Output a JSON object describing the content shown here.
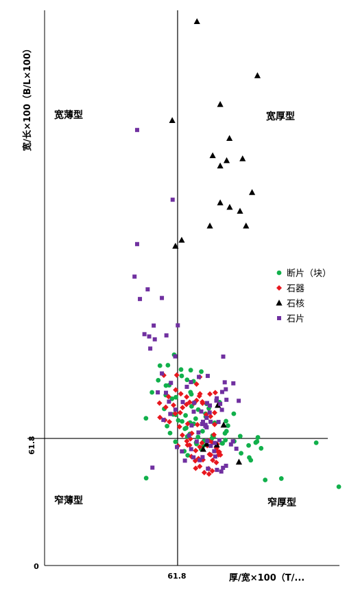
{
  "chart_data": {
    "type": "scatter",
    "title": "",
    "xlabel": "厚/宽×100（T/...",
    "ylabel": "宽/长×100（B/L×100）",
    "reference": {
      "x": 61.8,
      "y": 61.8,
      "x_label": "61.8",
      "y_label": "61.8",
      "origin_label": "0"
    },
    "xlim": [
      0,
      137
    ],
    "ylim": [
      0,
      270
    ],
    "grid": false,
    "legend_position": "right",
    "quadrant_labels": {
      "top_left": "宽薄型",
      "top_right": "宽厚型",
      "bottom_left": "窄薄型",
      "bottom_right": "窄厚型"
    },
    "colors": {
      "fragment": "#11b04b",
      "tool": "#e8171e",
      "core": "#000000",
      "flake": "#7030a0"
    },
    "series": [
      {
        "name": "断片（块）",
        "marker": "circle",
        "color": "#11b04b",
        "points": [
          [
            47.1,
            71.6
          ],
          [
            56.4,
            87.5
          ],
          [
            49.9,
            84.2
          ],
          [
            52.8,
            90.1
          ],
          [
            60.2,
            102.5
          ],
          [
            63.4,
            95.3
          ],
          [
            67.9,
            95.0
          ],
          [
            75.3,
            78.6
          ],
          [
            81.3,
            79.4
          ],
          [
            72.8,
            94.3
          ],
          [
            69.3,
            68.9
          ],
          [
            62.1,
            70.6
          ],
          [
            55.6,
            76.2
          ],
          [
            56.9,
            67.8
          ],
          [
            63.9,
            70.1
          ],
          [
            68.3,
            77.4
          ],
          [
            61.0,
            81.8
          ],
          [
            53.6,
            97.2
          ],
          [
            71.3,
            62.5
          ],
          [
            82.4,
            59.5
          ],
          [
            83.8,
            64.3
          ],
          [
            94.8,
            58.4
          ],
          [
            95.8,
            51.2
          ],
          [
            126.2,
            59.7
          ],
          [
            90.9,
            62.9
          ],
          [
            102.5,
            41.6
          ],
          [
            59.8,
            73.5
          ],
          [
            65.5,
            73.0
          ],
          [
            70.2,
            71.4
          ],
          [
            57.9,
            87.7
          ],
          [
            59.2,
            81.1
          ],
          [
            66.3,
            62.7
          ],
          [
            65.8,
            66.9
          ],
          [
            73.4,
            65.3
          ],
          [
            74.9,
            72.4
          ],
          [
            67.8,
            84.3
          ],
          [
            66.2,
            90.3
          ],
          [
            57.3,
            97.4
          ],
          [
            47.2,
            42.5
          ],
          [
            85.2,
            68.0
          ],
          [
            84.3,
            70.2
          ],
          [
            79.0,
            69.4
          ],
          [
            87.9,
            73.8
          ],
          [
            95.1,
            52.5
          ],
          [
            100.6,
            57.0
          ],
          [
            91.3,
            54.6
          ],
          [
            77.6,
            61.6
          ],
          [
            64.9,
            55.6
          ],
          [
            60.8,
            60.2
          ],
          [
            70.6,
            59.1
          ],
          [
            73.9,
            58.3
          ],
          [
            78.5,
            62.5
          ],
          [
            69.2,
            89.6
          ],
          [
            76.3,
            76.4
          ],
          [
            99.1,
            62.3
          ],
          [
            88.1,
            60.4
          ],
          [
            72.7,
            56.7
          ],
          [
            58.3,
            64.4
          ],
          [
            66.5,
            53.6
          ],
          [
            68.2,
            83.3
          ],
          [
            70.4,
            59.8
          ],
          [
            78.1,
            63.2
          ],
          [
            82.7,
            59.4
          ],
          [
            63.7,
            92.2
          ],
          [
            69.7,
            79.3
          ],
          [
            56.3,
            82.9
          ],
          [
            84.0,
            61.0
          ],
          [
            98.1,
            59.8
          ],
          [
            136.7,
            38.3
          ],
          [
            98.7,
            60.3
          ],
          [
            61.0,
            73.3
          ],
          [
            67.6,
            69.5
          ],
          [
            110.0,
            42.3
          ],
          [
            74.0,
            60.5
          ],
          [
            71.4,
            75.8
          ],
          [
            67.5,
            64.0
          ],
          [
            84.5,
            65.3
          ],
          [
            65.2,
            66.5
          ],
          [
            74.8,
            73.8
          ]
        ]
      },
      {
        "name": "石器",
        "marker": "diamond",
        "color": "#e8171e",
        "points": [
          [
            53.4,
            79.0
          ],
          [
            59.9,
            78.0
          ],
          [
            55.9,
            70.7
          ],
          [
            60.9,
            85.4
          ],
          [
            63.3,
            83.5
          ],
          [
            65.9,
            78.3
          ],
          [
            72.1,
            91.7
          ],
          [
            73.4,
            78.9
          ],
          [
            64.1,
            76.8
          ],
          [
            63.0,
            74.3
          ],
          [
            67.4,
            79.4
          ],
          [
            66.0,
            82.0
          ],
          [
            53.6,
            72.0
          ],
          [
            55.4,
            92.5
          ],
          [
            61.4,
            92.6
          ],
          [
            58.0,
            69.9
          ],
          [
            64.0,
            63.4
          ],
          [
            62.0,
            58.2
          ],
          [
            66.4,
            58.6
          ],
          [
            70.2,
            55.9
          ],
          [
            68.2,
            53.0
          ],
          [
            72.1,
            57.7
          ],
          [
            70.6,
            80.3
          ],
          [
            71.9,
            82.4
          ],
          [
            79.0,
            74.3
          ],
          [
            73.1,
            59.6
          ],
          [
            67.8,
            61.6
          ],
          [
            73.6,
            51.4
          ],
          [
            70.0,
            50.9
          ],
          [
            76.6,
            54.1
          ],
          [
            68.4,
            64.3
          ],
          [
            77.1,
            72.5
          ],
          [
            57.6,
            82.1
          ],
          [
            79.3,
            84.1
          ],
          [
            60.7,
            73.9
          ],
          [
            72.2,
            83.5
          ],
          [
            66.5,
            68.9
          ],
          [
            70.6,
            88.2
          ],
          [
            79.0,
            68.6
          ],
          [
            76.4,
            60.7
          ],
          [
            77.9,
            46.0
          ],
          [
            74.2,
            45.2
          ],
          [
            76.4,
            44.5
          ],
          [
            69.4,
            78.9
          ],
          [
            67.4,
            58.5
          ],
          [
            62.7,
            67.5
          ],
          [
            71.5,
            52.0
          ],
          [
            72.1,
            48.2
          ],
          [
            70.2,
            47.3
          ],
          [
            76.2,
            47.1
          ],
          [
            66.1,
            60.5
          ],
          [
            75.6,
            58.3
          ],
          [
            77.9,
            59.8
          ],
          [
            80.2,
            59.0
          ],
          [
            79.8,
            50.1
          ],
          [
            78.1,
            51.2
          ],
          [
            73.3,
            79.6
          ],
          [
            71.0,
            68.5
          ],
          [
            56.3,
            77.0
          ],
          [
            77.2,
            53.8
          ],
          [
            80.6,
            55.3
          ],
          [
            81.2,
            55.2
          ],
          [
            81.7,
            53.8
          ],
          [
            79.9,
            57.1
          ],
          [
            80.8,
            53.8
          ],
          [
            78.7,
            63.6
          ],
          [
            76.8,
            83.4
          ],
          [
            75.1,
            73.4
          ]
        ]
      },
      {
        "name": "石核",
        "marker": "triangle",
        "color": "#000000",
        "points": [
          [
            70.8,
            264.5
          ],
          [
            98.9,
            238.2
          ],
          [
            59.3,
            216.4
          ],
          [
            81.6,
            224.2
          ],
          [
            85.9,
            207.7
          ],
          [
            78.1,
            199.3
          ],
          [
            84.6,
            196.9
          ],
          [
            92.0,
            197.8
          ],
          [
            96.4,
            181.4
          ],
          [
            81.6,
            176.4
          ],
          [
            86.0,
            174.2
          ],
          [
            90.8,
            172.3
          ],
          [
            93.6,
            165.1
          ],
          [
            76.8,
            165.1
          ],
          [
            63.7,
            158.2
          ],
          [
            60.8,
            155.3
          ],
          [
            83.2,
            68.3
          ],
          [
            80.0,
            58.6
          ],
          [
            75.3,
            59.1
          ],
          [
            90.3,
            50.3
          ],
          [
            73.7,
            56.5
          ],
          [
            80.5,
            77.9
          ],
          [
            81.6,
            194.3
          ]
        ]
      },
      {
        "name": "石片",
        "marker": "square",
        "color": "#7030a0",
        "points": [
          [
            43.0,
            211.8
          ],
          [
            59.5,
            177.9
          ],
          [
            43.0,
            156.3
          ],
          [
            41.8,
            140.5
          ],
          [
            44.3,
            129.6
          ],
          [
            47.9,
            134.3
          ],
          [
            54.5,
            130.1
          ],
          [
            50.7,
            116.7
          ],
          [
            46.4,
            112.5
          ],
          [
            51.2,
            110.0
          ],
          [
            61.9,
            116.8
          ],
          [
            56.6,
            111.9
          ],
          [
            60.7,
            101.7
          ],
          [
            49.1,
            105.5
          ],
          [
            54.5,
            93.4
          ],
          [
            52.6,
            84.2
          ],
          [
            57.8,
            79.7
          ],
          [
            64.2,
            79.5
          ],
          [
            58.4,
            73.7
          ],
          [
            55.2,
            70.8
          ],
          [
            60.8,
            75.8
          ],
          [
            72.8,
            74.9
          ],
          [
            76.7,
            74.4
          ],
          [
            77.1,
            69.9
          ],
          [
            75.3,
            67.2
          ],
          [
            81.6,
            78.6
          ],
          [
            79.8,
            80.2
          ],
          [
            84.2,
            85.7
          ],
          [
            83.0,
            101.6
          ],
          [
            75.8,
            92.2
          ],
          [
            68.0,
            89.2
          ],
          [
            66.1,
            86.9
          ],
          [
            71.7,
            91.7
          ],
          [
            74.8,
            68.4
          ],
          [
            79.1,
            59.6
          ],
          [
            68.1,
            56.6
          ],
          [
            73.4,
            52.7
          ],
          [
            72.1,
            51.2
          ],
          [
            78.8,
            55.6
          ],
          [
            77.2,
            58.2
          ],
          [
            70.7,
            60.3
          ],
          [
            67.1,
            63.2
          ],
          [
            79.3,
            53.0
          ],
          [
            82.9,
            47.5
          ],
          [
            82.1,
            45.7
          ],
          [
            84.3,
            48.5
          ],
          [
            75.9,
            47.1
          ],
          [
            65.2,
            51.0
          ],
          [
            50.1,
            47.6
          ],
          [
            80.8,
            69.8
          ],
          [
            74.7,
            67.9
          ],
          [
            69.5,
            79.1
          ],
          [
            75.6,
            60.5
          ],
          [
            68.3,
            68.1
          ],
          [
            73.2,
            68.8
          ],
          [
            80.0,
            81.3
          ],
          [
            82.5,
            84.4
          ],
          [
            83.7,
            89.1
          ],
          [
            87.7,
            88.6
          ],
          [
            90.2,
            80.1
          ],
          [
            61.5,
            57.6
          ],
          [
            58.7,
            88.8
          ],
          [
            56.4,
            84.0
          ],
          [
            48.6,
            111.4
          ],
          [
            69.3,
            74.8
          ],
          [
            73.6,
            69.9
          ],
          [
            75.3,
            71.8
          ],
          [
            81.2,
            61.0
          ],
          [
            86.6,
            58.9
          ],
          [
            89.1,
            56.8
          ],
          [
            87.5,
            60.4
          ],
          [
            76.8,
            77.8
          ],
          [
            75.5,
            79.0
          ],
          [
            82.4,
            75.7
          ],
          [
            84.5,
            80.6
          ],
          [
            69.2,
            52.6
          ],
          [
            63.8,
            55.5
          ],
          [
            71.5,
            64.7
          ],
          [
            80.1,
            46.5
          ]
        ]
      }
    ]
  }
}
